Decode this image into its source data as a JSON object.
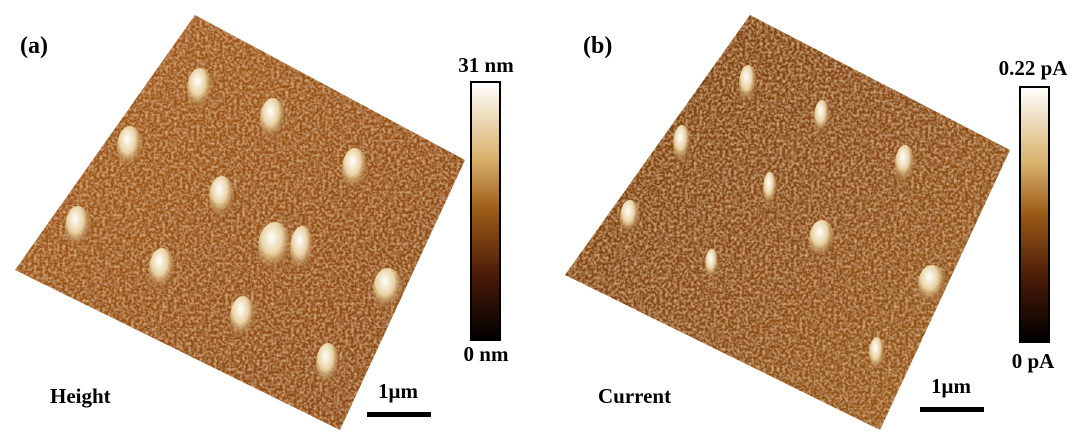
{
  "panels": [
    {
      "label": "(a)",
      "colorbar": {
        "max": "31 nm",
        "min": "0 nm"
      },
      "caption": "Height",
      "scale_bar": "1μm"
    },
    {
      "label": "(b)",
      "colorbar": {
        "max": "0.22 pA",
        "min": "0 pA"
      },
      "caption": "Current",
      "scale_bar": "1μm"
    }
  ]
}
